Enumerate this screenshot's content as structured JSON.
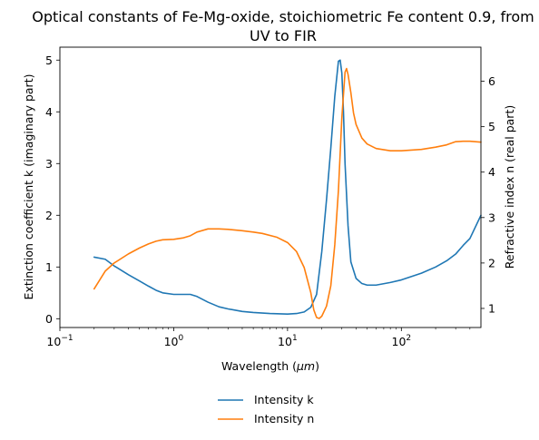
{
  "chart_data": {
    "type": "line",
    "title_line1": "Optical constants of Fe-Mg-oxide, stoichiometric Fe content 0.9, from",
    "title_line2": "UV to FIR",
    "xlabel_text": "Wavelength (",
    "xlabel_unit": "μm",
    "xlabel_close": ")",
    "ylabel_left": "Extinction coefficient k (imaginary part)",
    "ylabel_right": "Refractive index n (real part)",
    "xscale": "log",
    "xlim": [
      0.1,
      500
    ],
    "ylim_left": [
      -0.17,
      5.25
    ],
    "ylim_right": [
      0.58,
      6.75
    ],
    "x_ticks": [
      {
        "value": 0.1,
        "base": "10",
        "exp": "−1"
      },
      {
        "value": 1,
        "base": "10",
        "exp": "0"
      },
      {
        "value": 10,
        "base": "10",
        "exp": "1"
      },
      {
        "value": 100,
        "base": "10",
        "exp": "2"
      }
    ],
    "y_left_ticks": [
      "0",
      "1",
      "2",
      "3",
      "4",
      "5"
    ],
    "y_right_ticks": [
      "1",
      "2",
      "3",
      "4",
      "5",
      "6"
    ],
    "grid": false,
    "legend_position": "below",
    "series": [
      {
        "name": "Intensity k",
        "axis": "left",
        "color": "#1f77b4",
        "x": [
          0.2,
          0.25,
          0.3,
          0.4,
          0.5,
          0.6,
          0.7,
          0.8,
          1.0,
          1.2,
          1.4,
          1.6,
          2.0,
          2.5,
          3.0,
          4.0,
          5.0,
          7.0,
          10,
          12,
          14,
          16,
          18,
          20,
          22,
          24,
          26,
          28,
          29,
          30,
          31,
          32,
          34,
          36,
          40,
          45,
          50,
          60,
          80,
          100,
          150,
          200,
          250,
          300,
          350,
          400,
          500
        ],
        "values": [
          1.19,
          1.15,
          1.02,
          0.85,
          0.73,
          0.63,
          0.55,
          0.5,
          0.47,
          0.47,
          0.47,
          0.43,
          0.32,
          0.23,
          0.19,
          0.14,
          0.12,
          0.1,
          0.09,
          0.1,
          0.13,
          0.22,
          0.47,
          1.3,
          2.3,
          3.3,
          4.3,
          4.98,
          5.0,
          4.75,
          4.0,
          3.0,
          1.8,
          1.1,
          0.78,
          0.68,
          0.65,
          0.65,
          0.7,
          0.75,
          0.88,
          1.0,
          1.12,
          1.25,
          1.42,
          1.55,
          2.0
        ]
      },
      {
        "name": "Intensity n",
        "axis": "right",
        "color": "#ff7f0e",
        "x": [
          0.2,
          0.25,
          0.3,
          0.4,
          0.5,
          0.6,
          0.7,
          0.8,
          1.0,
          1.2,
          1.4,
          1.6,
          2.0,
          2.5,
          3.0,
          4.0,
          5.0,
          6.0,
          8.0,
          10,
          12,
          14,
          16,
          17,
          18,
          19,
          20,
          22,
          24,
          26,
          28,
          30,
          32,
          33,
          34,
          36,
          38,
          40,
          45,
          50,
          60,
          80,
          100,
          150,
          200,
          250,
          300,
          350,
          400,
          500
        ],
        "values": [
          1.43,
          1.82,
          2.0,
          2.2,
          2.33,
          2.42,
          2.48,
          2.51,
          2.52,
          2.55,
          2.6,
          2.68,
          2.75,
          2.75,
          2.74,
          2.71,
          2.68,
          2.65,
          2.57,
          2.45,
          2.25,
          1.9,
          1.35,
          0.97,
          0.8,
          0.78,
          0.83,
          1.05,
          1.5,
          2.4,
          3.6,
          5.2,
          6.2,
          6.28,
          6.15,
          5.75,
          5.3,
          5.05,
          4.75,
          4.62,
          4.52,
          4.47,
          4.47,
          4.5,
          4.55,
          4.6,
          4.67,
          4.68,
          4.68,
          4.66
        ]
      }
    ]
  }
}
